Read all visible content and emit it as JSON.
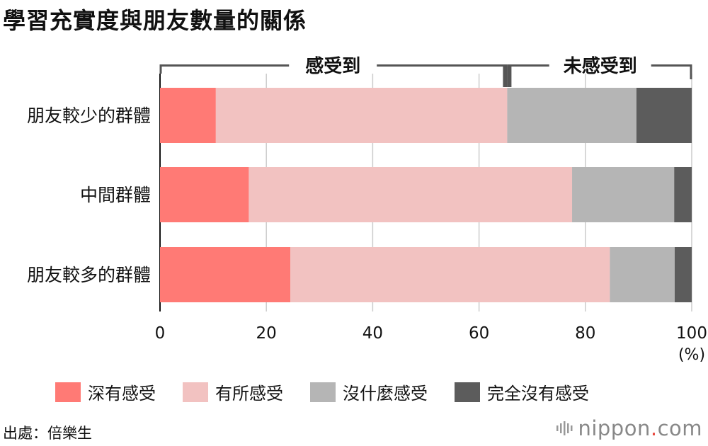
{
  "chart_data": {
    "type": "bar",
    "orientation": "horizontal",
    "stacked": true,
    "title": "學習充實度與朋友數量的關係",
    "categories": [
      "朋友較少的群體",
      "中間群體",
      "朋友較多的群體"
    ],
    "series": [
      {
        "name": "深有感受",
        "color": "#ff7a75",
        "values": [
          10.5,
          16.7,
          24.5
        ]
      },
      {
        "name": "有所感受",
        "color": "#f2c2c1",
        "values": [
          54.8,
          60.8,
          60.1
        ]
      },
      {
        "name": "沒什麼感受",
        "color": "#b5b5b5",
        "values": [
          24.3,
          19.2,
          12.2
        ]
      },
      {
        "name": "完全沒有感受",
        "color": "#5c5c5c",
        "values": [
          10.4,
          3.3,
          3.2
        ]
      }
    ],
    "xlim": [
      0,
      100
    ],
    "xticks": [
      0,
      20,
      40,
      60,
      80,
      100
    ],
    "xunit": "(%)",
    "grid": true,
    "legend_position": "bottom",
    "groupings": [
      {
        "label": "感受到",
        "from": 0,
        "to": 65.3
      },
      {
        "label": "未感受到",
        "from": 65.3,
        "to": 100
      }
    ]
  },
  "source": "出處：倍樂生",
  "brand": {
    "name": "nippon",
    "dot": ".",
    "tld": "com"
  }
}
